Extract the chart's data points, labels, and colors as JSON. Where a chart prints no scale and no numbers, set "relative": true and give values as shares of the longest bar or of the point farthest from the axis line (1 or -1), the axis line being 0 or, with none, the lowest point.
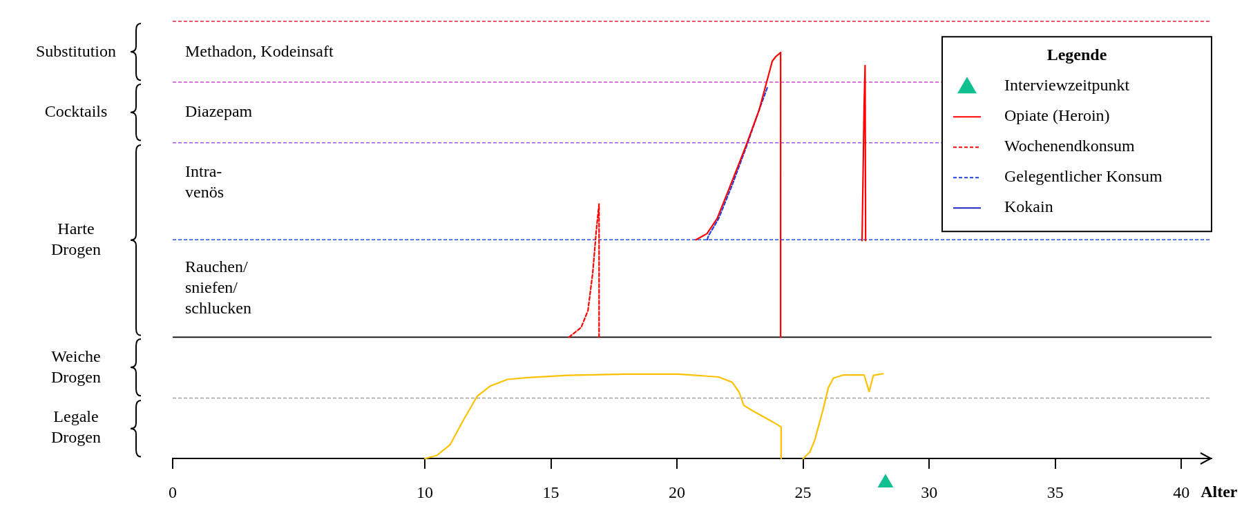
{
  "chart_data": {
    "type": "line",
    "relative": true,
    "xlabel": "Alter",
    "legend_title": "Legende",
    "legend": "top right",
    "marker": "none",
    "xlim": [
      0,
      41.2
    ],
    "xticks": [
      0,
      10,
      15,
      20,
      25,
      30,
      35,
      40
    ],
    "series": [
      {
        "name": "Interviewzeitpunkt",
        "type": "scatter",
        "marker": "triangle",
        "color": "#10c090",
        "x": [
          28.27
        ],
        "values": [
          -0.06
        ]
      },
      {
        "name": "Opiate (Heroin)",
        "color": "#ff0000",
        "line_style": "solid",
        "x": [
          20.75,
          21.19,
          21.59,
          22.05,
          22.71,
          23.26,
          23.78,
          23.92,
          24.11,
          24.11,
          25,
          27.34,
          27.42,
          27.46,
          27.48
        ],
        "values": [
          0.539,
          0.554,
          0.591,
          0.662,
          0.766,
          0.859,
          0.979,
          0.99,
          1,
          0.299,
          null,
          0.537,
          0.867,
          0.968,
          0.537
        ]
      },
      {
        "name": "Wochenendkonsum",
        "color": "#ff0000",
        "line_style": "dashed",
        "x": [
          15.72,
          16.2,
          16.47,
          16.66,
          16.8,
          16.91,
          16.91
        ],
        "values": [
          0.299,
          0.323,
          0.365,
          0.458,
          0.562,
          0.627,
          0.299
        ]
      },
      {
        "name": "Gelegentlicher Konsum",
        "color": "#2040e0",
        "line_style": "dashed",
        "x": [
          21.2,
          21.25,
          21.65,
          22.19,
          22.71,
          23.26,
          23.59
        ],
        "values": [
          0.539,
          0.549,
          0.591,
          0.674,
          0.761,
          0.859,
          0.915
        ]
      },
      {
        "name": "Kokain",
        "color": "#2020c0",
        "line_style": "solid"
      },
      {
        "color": "#ffc000",
        "line_style": "solid",
        "x": [
          10,
          10.48,
          11,
          11.54,
          12.07,
          12.6,
          13.28,
          14.2,
          15.66,
          17.93,
          20.06,
          21.65,
          22.19,
          22.46,
          22.65,
          22.99,
          23.78,
          24.13,
          24.13,
          24.6,
          25,
          25.27,
          25.46,
          25.79,
          26,
          26.2,
          26.6,
          27.42,
          27.62,
          27.79,
          28.17
        ],
        "values": [
          0,
          0.008,
          0.034,
          0.096,
          0.153,
          0.179,
          0.195,
          0.2,
          0.205,
          0.208,
          0.208,
          0.201,
          0.188,
          0.164,
          0.131,
          0.118,
          0.091,
          0.078,
          0,
          null,
          0,
          0.016,
          0.045,
          0.12,
          0.174,
          0.198,
          0.206,
          0.206,
          0.165,
          0.205,
          0.209
        ]
      }
    ],
    "ref_lines": [
      {
        "axis": "y",
        "value": 1.077,
        "color": "#f04060",
        "line_style": "dashed"
      },
      {
        "axis": "y",
        "value": 0.927,
        "color": "#e040e0",
        "line_style": "dashed"
      },
      {
        "axis": "y",
        "value": 0.778,
        "color": "#a050f0",
        "line_style": "dashed"
      },
      {
        "axis": "y",
        "value": 0.539,
        "color": "#2050e0",
        "line_style": "dashed"
      },
      {
        "axis": "y",
        "value": 0.299,
        "color": "#000000",
        "line_style": "solid"
      },
      {
        "axis": "y",
        "value": 0.149,
        "color": "#a0a0a0",
        "line_style": "dashed"
      }
    ],
    "annotations": [
      "Substitution",
      "Methadon, Kodeinsaft",
      "Cocktails",
      "Diazepam",
      "Harte\nDrogen",
      "Intra-\nvenös",
      "Rauchen/\nsniefen/\nschlucken",
      "Weiche\nDrogen",
      "Legale\nDrogen"
    ]
  }
}
